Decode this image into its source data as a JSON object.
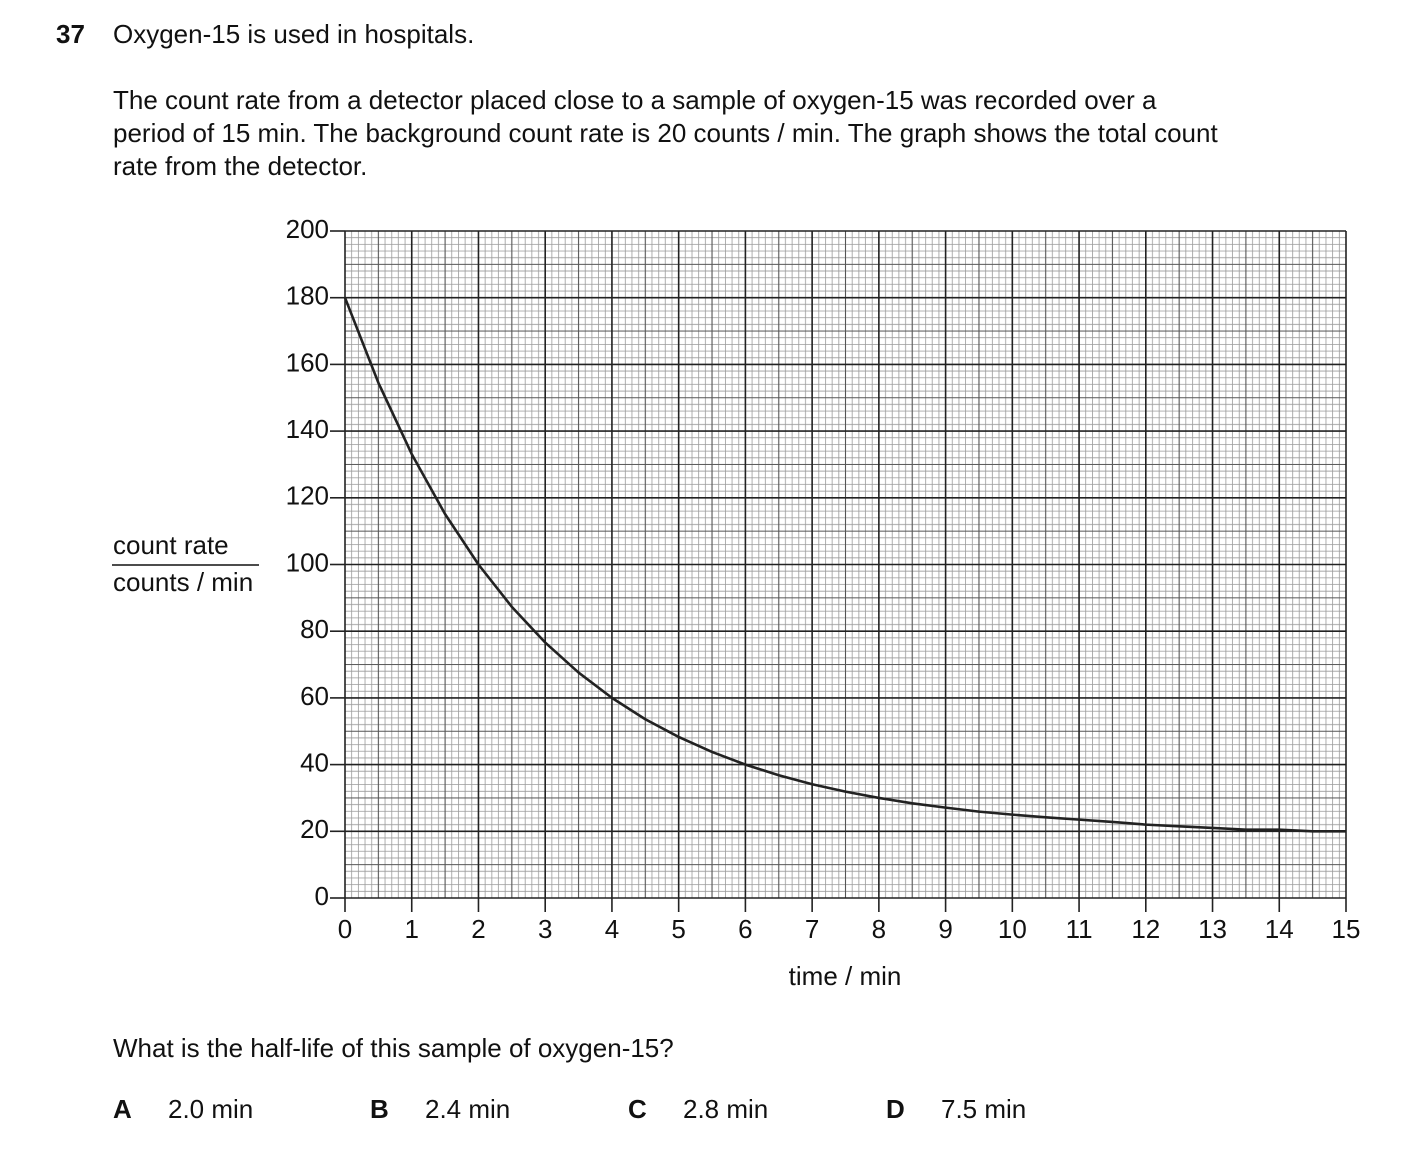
{
  "question": {
    "number": "37",
    "intro": "Oxygen-15 is used in hospitals.",
    "paragraph": [
      "The count rate from a detector placed close to a sample of oxygen-15 was recorded over a",
      "period of 15 min. The background count rate is 20 counts / min. The graph shows the total count",
      "rate from the detector."
    ],
    "prompt": "What is the half-life of this sample of oxygen-15?",
    "options": [
      {
        "letter": "A",
        "text": "2.0 min"
      },
      {
        "letter": "B",
        "text": "2.4 min"
      },
      {
        "letter": "C",
        "text": "2.8 min"
      },
      {
        "letter": "D",
        "text": "7.5 min"
      }
    ]
  },
  "chart_data": {
    "type": "line",
    "x_label": "time / min",
    "y_label": {
      "numerator": "count rate",
      "denominator": "counts / min"
    },
    "x": [
      0,
      0.5,
      1,
      1.5,
      2,
      2.5,
      3,
      3.5,
      4,
      4.5,
      5,
      5.5,
      6,
      6.5,
      7,
      7.5,
      8,
      8.5,
      9,
      9.5,
      10,
      10.5,
      11,
      11.5,
      12,
      12.5,
      13,
      13.5,
      14,
      14.5,
      15
    ],
    "values": [
      180,
      154.5,
      133.1,
      115.1,
      100,
      87.3,
      76.6,
      67.6,
      60,
      53.6,
      48.3,
      43.8,
      40,
      36.8,
      34.1,
      31.9,
      30,
      28.4,
      27.1,
      25.9,
      25,
      24.2,
      23.5,
      22.8,
      22,
      21.5,
      21,
      20.5,
      20.5,
      20,
      20
    ],
    "color": "#222222",
    "xlim": [
      0,
      15
    ],
    "ylim": [
      0,
      200
    ],
    "xticks": [
      0,
      1,
      2,
      3,
      4,
      5,
      6,
      7,
      8,
      9,
      10,
      11,
      12,
      13,
      14,
      15
    ],
    "yticks": [
      0,
      20,
      40,
      60,
      80,
      100,
      120,
      140,
      160,
      180,
      200
    ],
    "grid": true
  }
}
